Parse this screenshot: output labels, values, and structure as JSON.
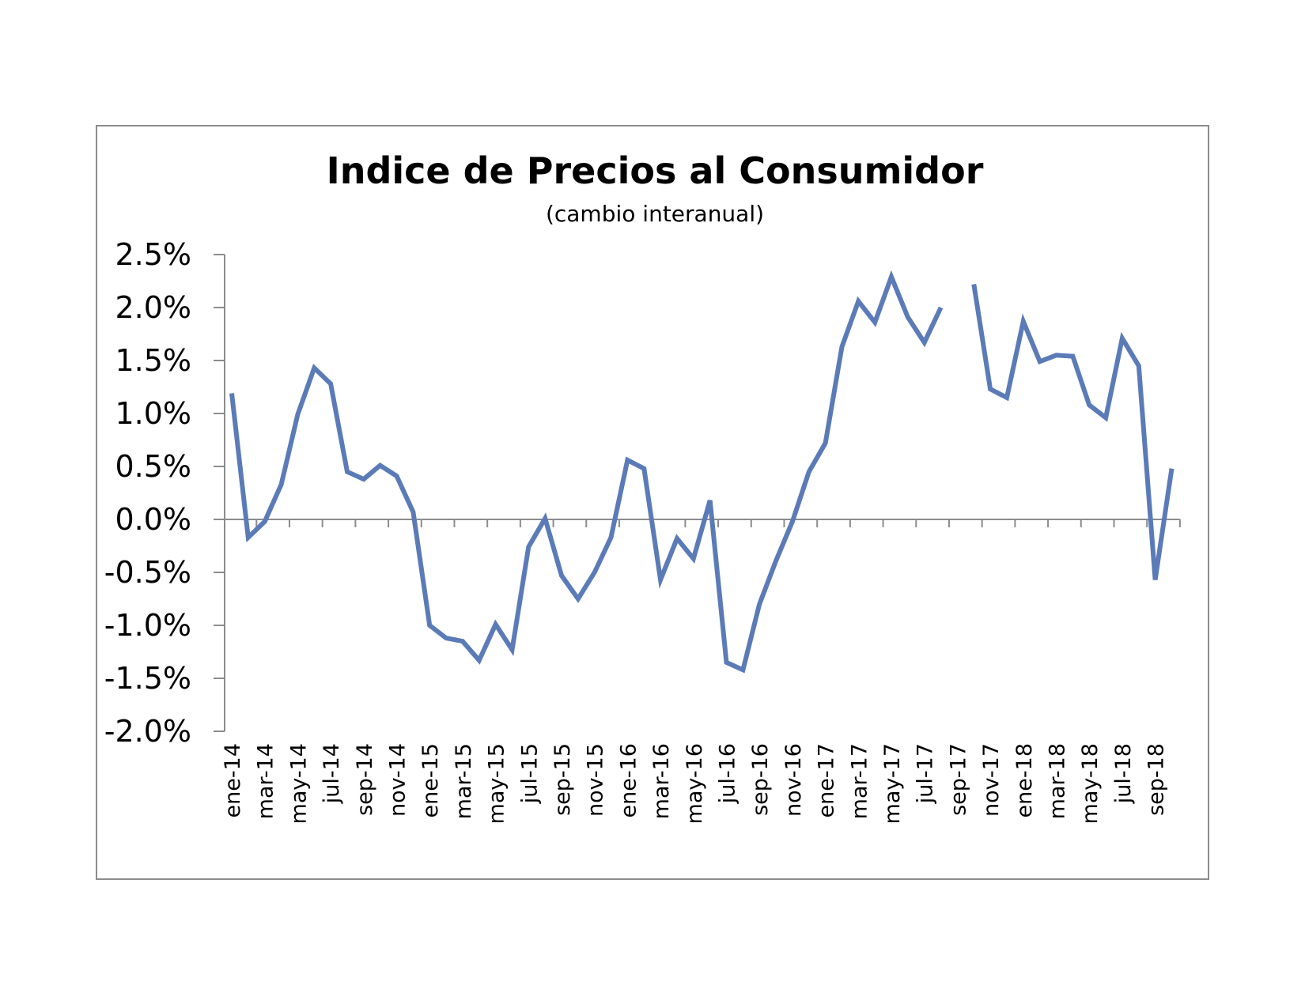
{
  "chart_data": {
    "type": "line",
    "title": "Indice de Precios al Consumidor",
    "subtitle": "(cambio interanual)",
    "xlabel": "",
    "ylabel": "",
    "ylim": [
      -2.0,
      2.5
    ],
    "y_ticks": [
      "2.5%",
      "2.0%",
      "1.5%",
      "1.0%",
      "0.5%",
      "0.0%",
      "-0.5%",
      "-1.0%",
      "-1.5%",
      "-2.0%"
    ],
    "y_tick_values": [
      2.5,
      2.0,
      1.5,
      1.0,
      0.5,
      0.0,
      -0.5,
      -1.0,
      -1.5,
      -2.0
    ],
    "categories": [
      "ene-14",
      "feb-14",
      "mar-14",
      "abr-14",
      "may-14",
      "jun-14",
      "jul-14",
      "ago-14",
      "sep-14",
      "oct-14",
      "nov-14",
      "dic-14",
      "ene-15",
      "feb-15",
      "mar-15",
      "abr-15",
      "may-15",
      "jun-15",
      "jul-15",
      "ago-15",
      "sep-15",
      "oct-15",
      "nov-15",
      "dic-15",
      "ene-16",
      "feb-16",
      "mar-16",
      "abr-16",
      "may-16",
      "jun-16",
      "jul-16",
      "ago-16",
      "sep-16",
      "oct-16",
      "nov-16",
      "dic-16",
      "ene-17",
      "feb-17",
      "mar-17",
      "abr-17",
      "may-17",
      "jun-17",
      "jul-17",
      "ago-17",
      "sep-17",
      "oct-17",
      "nov-17",
      "dic-17",
      "ene-18",
      "feb-18",
      "mar-18",
      "abr-18",
      "may-18",
      "jun-18",
      "jul-18",
      "ago-18",
      "sep-18",
      "oct-18"
    ],
    "x_tick_labels": [
      "ene-14",
      "mar-14",
      "may-14",
      "jul-14",
      "sep-14",
      "nov-14",
      "ene-15",
      "mar-15",
      "may-15",
      "jul-15",
      "sep-15",
      "nov-15",
      "ene-16",
      "mar-16",
      "may-16",
      "jul-16",
      "sep-16",
      "nov-16",
      "ene-17",
      "mar-17",
      "may-17",
      "jul-17",
      "sep-17",
      "nov-17",
      "ene-18",
      "mar-18",
      "may-18",
      "jul-18",
      "sep-18"
    ],
    "grid": false,
    "legend": "none",
    "series": [
      {
        "color": "#5b7bb8",
        "values": [
          1.19,
          -0.17,
          -0.02,
          0.33,
          0.99,
          1.43,
          1.28,
          0.45,
          0.38,
          0.51,
          0.41,
          0.07,
          -1.0,
          -1.12,
          -1.15,
          -1.33,
          -0.99,
          -1.23,
          -0.26,
          0.01,
          -0.53,
          -0.75,
          -0.5,
          -0.17,
          0.56,
          0.48,
          -0.57,
          -0.18,
          -0.37,
          0.18,
          -1.35,
          -1.42,
          -0.8,
          -0.39,
          -0.02,
          0.45,
          0.72,
          1.63,
          2.06,
          1.86,
          2.29,
          1.91,
          1.67,
          2.0,
          null,
          2.22,
          1.23,
          1.15,
          1.87,
          1.49,
          1.55,
          1.54,
          1.08,
          0.96,
          1.71,
          1.45,
          -0.57,
          0.48
        ]
      }
    ]
  }
}
